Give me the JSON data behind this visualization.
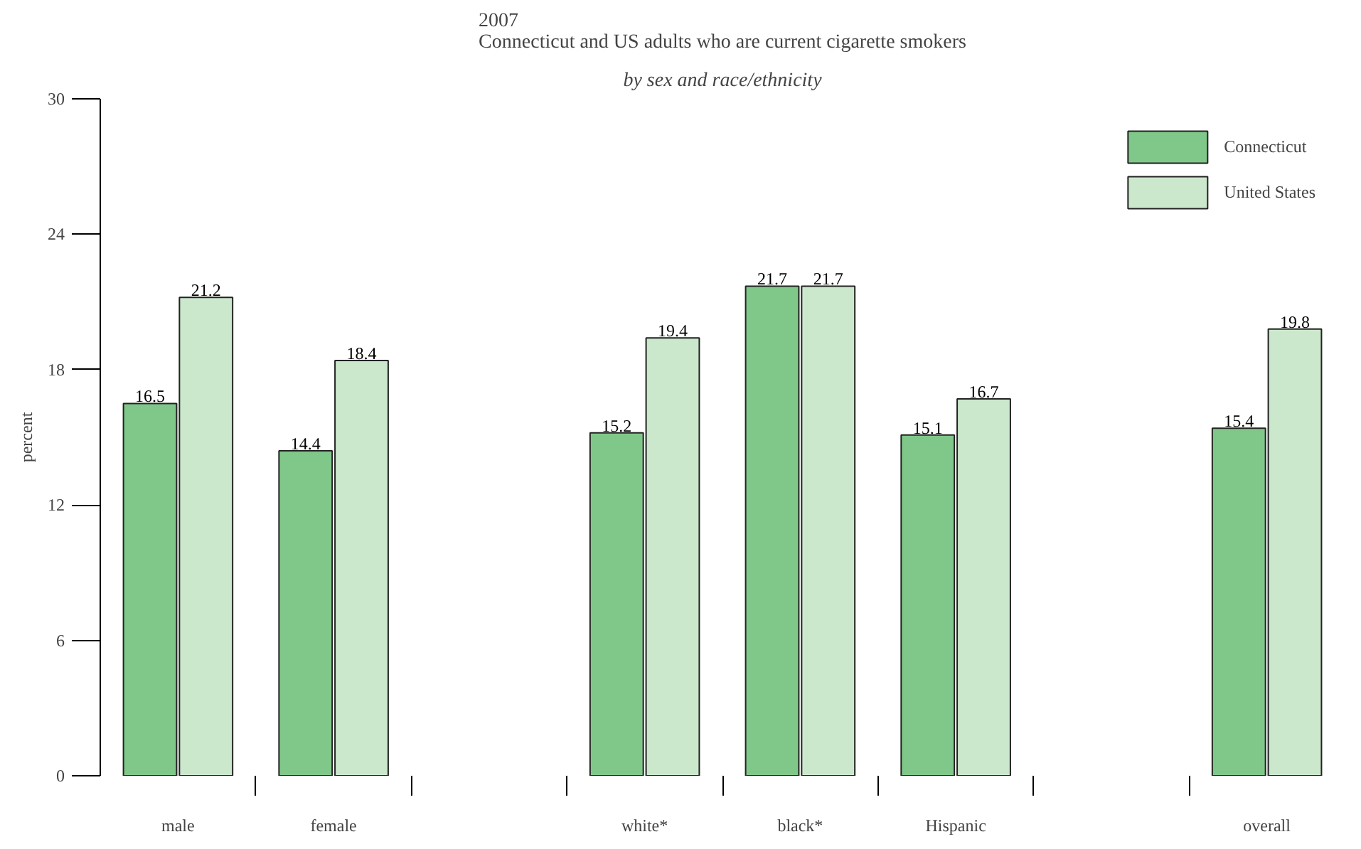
{
  "chart_data": {
    "type": "bar",
    "title": "2007\nConnecticut and US adults who are current cigarette smokers",
    "subtitle": "by sex and race/ethnicity",
    "ylabel": "percent",
    "categories": [
      "male",
      "female",
      null,
      "white*",
      "black*",
      "Hispanic",
      null,
      "overall"
    ],
    "series": [
      {
        "name": "Connecticut",
        "color": "#80c88a",
        "values": [
          16.5,
          14.4,
          null,
          15.2,
          21.7,
          15.1,
          null,
          15.4
        ]
      },
      {
        "name": "United States",
        "color": "#cce8cc",
        "values": [
          21.2,
          18.4,
          null,
          19.4,
          21.7,
          16.7,
          null,
          19.8
        ]
      }
    ],
    "ylim": [
      0,
      30
    ],
    "yticks": [
      0,
      6,
      12,
      18,
      24,
      30
    ],
    "data_labels": true,
    "grid": false,
    "legend": "top right"
  }
}
